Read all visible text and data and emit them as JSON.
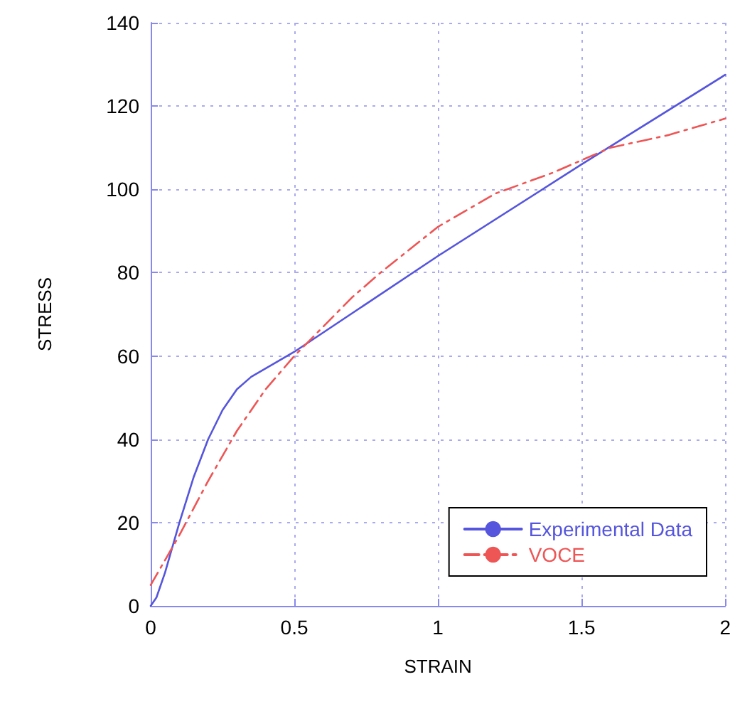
{
  "chart_data": {
    "type": "line",
    "xlabel": "STRAIN",
    "ylabel": "STRESS",
    "xlim": [
      0,
      2
    ],
    "xticks": [
      0,
      0.5,
      1,
      1.5,
      2
    ],
    "ylim": [
      0,
      140
    ],
    "yticks": [
      0,
      20,
      40,
      60,
      80,
      100,
      120,
      140
    ],
    "grid": true,
    "legend": "bottom right",
    "marker": "none",
    "series": [
      {
        "name": "Experimental Data",
        "color": "#5555dd",
        "line_style": "solid",
        "x": [
          0,
          0.02,
          0.05,
          0.1,
          0.15,
          0.2,
          0.25,
          0.3,
          0.35,
          0.4,
          0.5,
          1,
          1.5,
          2
        ],
        "values": [
          0,
          2,
          8,
          20,
          31,
          40,
          47,
          52,
          55,
          57,
          61,
          84,
          106,
          127.5
        ]
      },
      {
        "name": "VOCE",
        "color": "#ee5555",
        "line_style": "dashed",
        "x": [
          0,
          0.1,
          0.2,
          0.3,
          0.4,
          0.5,
          0.6,
          0.7,
          0.8,
          1,
          1.2,
          1.4,
          1.6,
          1.8,
          2
        ],
        "values": [
          5,
          17,
          30,
          42,
          52,
          60,
          67,
          74,
          80,
          91,
          99,
          104,
          110,
          113,
          117
        ]
      }
    ]
  }
}
